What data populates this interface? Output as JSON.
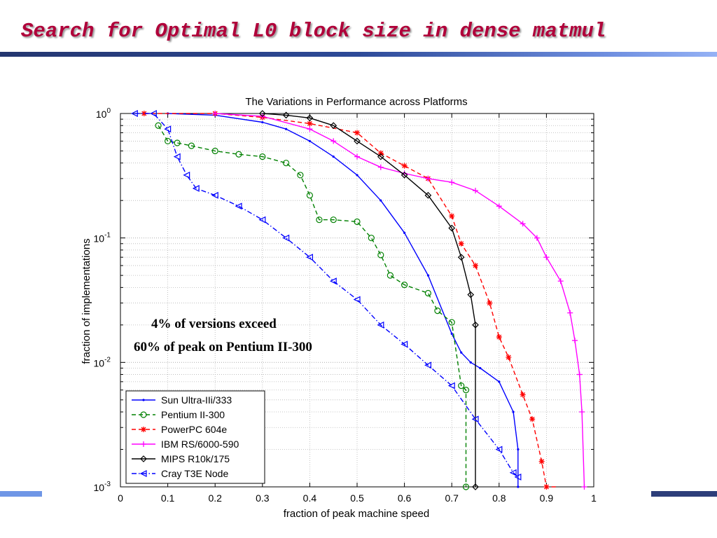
{
  "slide": {
    "title": "Search for Optimal L0 block size in dense matmul",
    "annotation_line1": "4% of versions exceed",
    "annotation_line2": "60% of peak on Pentium II-300"
  },
  "chart_data": {
    "type": "line",
    "title": "The Variations in Performance across Platforms",
    "xlabel": "fraction of peak machine speed",
    "ylabel": "fraction of implementations",
    "xlim": [
      0,
      1
    ],
    "ylim": [
      0.001,
      1
    ],
    "yscale": "log",
    "grid": true,
    "legend_position": "bottom-left",
    "x_ticks": [
      "0",
      "0.1",
      "0.2",
      "0.3",
      "0.4",
      "0.5",
      "0.6",
      "0.7",
      "0.8",
      "0.9",
      "1"
    ],
    "y_ticks": [
      {
        "base": "10",
        "exp": "0",
        "value": 1
      },
      {
        "base": "10",
        "exp": "-1",
        "value": 0.1
      },
      {
        "base": "10",
        "exp": "-2",
        "value": 0.01
      },
      {
        "base": "10",
        "exp": "-3",
        "value": 0.001
      }
    ],
    "series": [
      {
        "name": "Sun Ultra-IIi/333",
        "color": "#0000ff",
        "dash": "solid",
        "marker": "dot",
        "x": [
          0.1,
          0.2,
          0.3,
          0.35,
          0.4,
          0.45,
          0.5,
          0.55,
          0.6,
          0.65,
          0.7,
          0.72,
          0.74,
          0.76,
          0.8,
          0.83,
          0.84,
          0.84
        ],
        "y": [
          1,
          0.97,
          0.85,
          0.75,
          0.6,
          0.45,
          0.32,
          0.2,
          0.11,
          0.05,
          0.017,
          0.012,
          0.01,
          0.009,
          0.007,
          0.004,
          0.002,
          0.001
        ]
      },
      {
        "name": "Pentium II-300",
        "color": "#008000",
        "dash": "dashed",
        "marker": "circle",
        "x": [
          0.08,
          0.1,
          0.12,
          0.15,
          0.2,
          0.25,
          0.3,
          0.35,
          0.38,
          0.4,
          0.42,
          0.45,
          0.5,
          0.53,
          0.55,
          0.57,
          0.6,
          0.65,
          0.67,
          0.7,
          0.72,
          0.73,
          0.73
        ],
        "y": [
          0.8,
          0.6,
          0.58,
          0.55,
          0.5,
          0.47,
          0.45,
          0.4,
          0.32,
          0.22,
          0.14,
          0.14,
          0.135,
          0.1,
          0.073,
          0.05,
          0.042,
          0.036,
          0.026,
          0.021,
          0.0065,
          0.006,
          0.001
        ]
      },
      {
        "name": "PowerPC 604e",
        "color": "#ff0000",
        "dash": "dashed",
        "marker": "star",
        "x": [
          0.05,
          0.2,
          0.3,
          0.4,
          0.5,
          0.55,
          0.6,
          0.65,
          0.7,
          0.72,
          0.75,
          0.78,
          0.8,
          0.82,
          0.85,
          0.87,
          0.89,
          0.9,
          0.92
        ],
        "y": [
          1,
          1,
          0.93,
          0.83,
          0.7,
          0.48,
          0.38,
          0.3,
          0.15,
          0.09,
          0.06,
          0.03,
          0.016,
          0.011,
          0.0055,
          0.0035,
          0.0016,
          0.001,
          0.001
        ]
      },
      {
        "name": "IBM RS/6000-590",
        "color": "#ff00ff",
        "dash": "solid",
        "marker": "plus",
        "x": [
          0.2,
          0.3,
          0.4,
          0.45,
          0.5,
          0.55,
          0.6,
          0.65,
          0.7,
          0.75,
          0.8,
          0.85,
          0.88,
          0.9,
          0.93,
          0.95,
          0.96,
          0.97,
          0.975,
          0.98
        ],
        "y": [
          1,
          0.95,
          0.75,
          0.6,
          0.45,
          0.37,
          0.33,
          0.3,
          0.28,
          0.24,
          0.18,
          0.13,
          0.1,
          0.07,
          0.045,
          0.025,
          0.015,
          0.008,
          0.004,
          0.001
        ]
      },
      {
        "name": "MIPS R10k/175",
        "color": "#000000",
        "dash": "solid",
        "marker": "diamond",
        "x": [
          0.3,
          0.35,
          0.4,
          0.45,
          0.5,
          0.55,
          0.6,
          0.65,
          0.7,
          0.72,
          0.74,
          0.75,
          0.75
        ],
        "y": [
          1,
          0.97,
          0.92,
          0.8,
          0.6,
          0.45,
          0.32,
          0.22,
          0.12,
          0.07,
          0.035,
          0.02,
          0.001
        ]
      },
      {
        "name": "Cray T3E Node",
        "color": "#0000ff",
        "dash": "dashdot",
        "marker": "triangle-left",
        "x": [
          0.03,
          0.07,
          0.1,
          0.12,
          0.14,
          0.16,
          0.2,
          0.25,
          0.3,
          0.35,
          0.4,
          0.45,
          0.5,
          0.55,
          0.6,
          0.65,
          0.7,
          0.75,
          0.8,
          0.83,
          0.84
        ],
        "y": [
          1,
          1,
          0.75,
          0.45,
          0.32,
          0.25,
          0.22,
          0.18,
          0.14,
          0.1,
          0.07,
          0.045,
          0.032,
          0.02,
          0.014,
          0.0095,
          0.0065,
          0.0035,
          0.002,
          0.0013,
          0.0012
        ]
      }
    ]
  }
}
